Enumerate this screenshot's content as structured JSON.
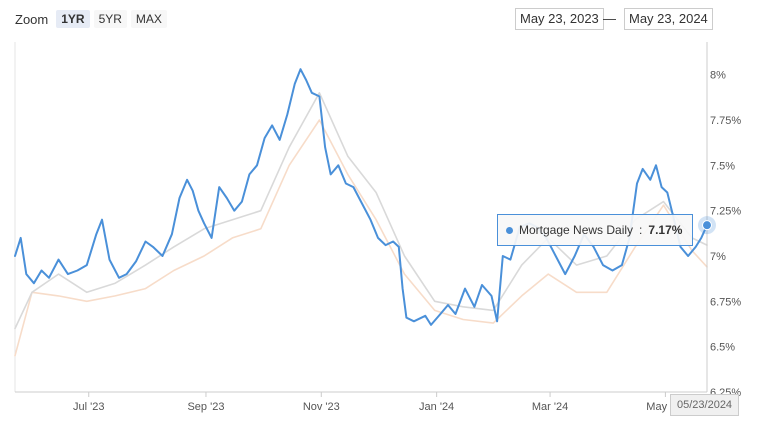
{
  "zoom": {
    "label": "Zoom",
    "buttons": [
      {
        "label": "1YR",
        "active": true
      },
      {
        "label": "5YR",
        "active": false
      },
      {
        "label": "MAX",
        "active": false
      }
    ]
  },
  "range": {
    "from": "May 23, 2023",
    "separator": "—",
    "to": "May 23, 2024"
  },
  "tooltip": {
    "series": "Mortgage News Daily",
    "value": "7.17%"
  },
  "crosshair_date": "05/23/2024",
  "colors": {
    "primary_line": "#4a90d9",
    "gray_line": "#d9d9d9",
    "orange_line": "#f7dcc9"
  },
  "chart_data": {
    "type": "line",
    "x_axis": {
      "ticks": [
        {
          "label": "Jul '23",
          "date": "2023-07-01"
        },
        {
          "label": "Sep '23",
          "date": "2023-09-01"
        },
        {
          "label": "Nov '23",
          "date": "2023-11-01"
        },
        {
          "label": "Jan '24",
          "date": "2024-01-01"
        },
        {
          "label": "Mar '24",
          "date": "2024-03-01"
        },
        {
          "label": "May '24",
          "date": "2024-05-01"
        }
      ],
      "range": [
        "2023-05-23",
        "2024-05-23"
      ]
    },
    "y_axis": {
      "ticks": [
        {
          "label": "6.25%",
          "value": 6.25
        },
        {
          "label": "6.5%",
          "value": 6.5
        },
        {
          "label": "6.75%",
          "value": 6.75
        },
        {
          "label": "7%",
          "value": 7.0
        },
        {
          "label": "7.25%",
          "value": 7.25
        },
        {
          "label": "7.5%",
          "value": 7.5
        },
        {
          "label": "7.75%",
          "value": 7.75
        },
        {
          "label": "8%",
          "value": 8.0
        }
      ],
      "range": [
        6.25,
        8.18
      ],
      "gridlines": false
    },
    "series": [
      {
        "name": "",
        "color": "#f7dcc9",
        "points": [
          [
            "2023-05-23",
            6.45
          ],
          [
            "2023-06-01",
            6.8
          ],
          [
            "2023-06-15",
            6.78
          ],
          [
            "2023-06-30",
            6.75
          ],
          [
            "2023-07-15",
            6.78
          ],
          [
            "2023-07-31",
            6.82
          ],
          [
            "2023-08-15",
            6.92
          ],
          [
            "2023-08-31",
            7.0
          ],
          [
            "2023-09-15",
            7.1
          ],
          [
            "2023-09-30",
            7.15
          ],
          [
            "2023-10-15",
            7.5
          ],
          [
            "2023-10-31",
            7.75
          ],
          [
            "2023-11-15",
            7.45
          ],
          [
            "2023-11-30",
            7.2
          ],
          [
            "2023-12-15",
            6.9
          ],
          [
            "2023-12-31",
            6.7
          ],
          [
            "2024-01-15",
            6.65
          ],
          [
            "2024-01-31",
            6.63
          ],
          [
            "2024-02-15",
            6.78
          ],
          [
            "2024-02-29",
            6.9
          ],
          [
            "2024-03-15",
            6.8
          ],
          [
            "2024-03-31",
            6.8
          ],
          [
            "2024-04-15",
            7.05
          ],
          [
            "2024-04-30",
            7.28
          ],
          [
            "2024-05-15",
            7.03
          ],
          [
            "2024-05-23",
            6.94
          ]
        ]
      },
      {
        "name": "",
        "color": "#d9d9d9",
        "points": [
          [
            "2023-05-23",
            6.6
          ],
          [
            "2023-06-01",
            6.8
          ],
          [
            "2023-06-15",
            6.9
          ],
          [
            "2023-06-30",
            6.8
          ],
          [
            "2023-07-15",
            6.85
          ],
          [
            "2023-07-31",
            6.95
          ],
          [
            "2023-08-15",
            7.05
          ],
          [
            "2023-08-31",
            7.15
          ],
          [
            "2023-09-15",
            7.2
          ],
          [
            "2023-09-30",
            7.25
          ],
          [
            "2023-10-15",
            7.6
          ],
          [
            "2023-10-31",
            7.9
          ],
          [
            "2023-11-15",
            7.55
          ],
          [
            "2023-11-30",
            7.35
          ],
          [
            "2023-12-15",
            7.0
          ],
          [
            "2023-12-31",
            6.75
          ],
          [
            "2024-01-15",
            6.72
          ],
          [
            "2024-01-31",
            6.7
          ],
          [
            "2024-02-15",
            6.95
          ],
          [
            "2024-02-29",
            7.1
          ],
          [
            "2024-03-15",
            6.95
          ],
          [
            "2024-03-31",
            7.0
          ],
          [
            "2024-04-15",
            7.2
          ],
          [
            "2024-04-30",
            7.3
          ],
          [
            "2024-05-15",
            7.1
          ],
          [
            "2024-05-23",
            7.06
          ]
        ]
      },
      {
        "name": "Mortgage News Daily",
        "color": "#4a90d9",
        "points": [
          [
            "2023-05-23",
            7.0
          ],
          [
            "2023-05-26",
            7.1
          ],
          [
            "2023-05-29",
            6.9
          ],
          [
            "2023-06-02",
            6.85
          ],
          [
            "2023-06-06",
            6.92
          ],
          [
            "2023-06-10",
            6.88
          ],
          [
            "2023-06-15",
            6.98
          ],
          [
            "2023-06-20",
            6.9
          ],
          [
            "2023-06-25",
            6.92
          ],
          [
            "2023-06-30",
            6.95
          ],
          [
            "2023-07-05",
            7.12
          ],
          [
            "2023-07-08",
            7.2
          ],
          [
            "2023-07-12",
            6.98
          ],
          [
            "2023-07-17",
            6.88
          ],
          [
            "2023-07-21",
            6.9
          ],
          [
            "2023-07-26",
            6.97
          ],
          [
            "2023-07-31",
            7.08
          ],
          [
            "2023-08-04",
            7.05
          ],
          [
            "2023-08-09",
            7.0
          ],
          [
            "2023-08-14",
            7.12
          ],
          [
            "2023-08-18",
            7.32
          ],
          [
            "2023-08-22",
            7.42
          ],
          [
            "2023-08-25",
            7.36
          ],
          [
            "2023-08-28",
            7.25
          ],
          [
            "2023-08-31",
            7.18
          ],
          [
            "2023-09-04",
            7.1
          ],
          [
            "2023-09-08",
            7.38
          ],
          [
            "2023-09-12",
            7.32
          ],
          [
            "2023-09-16",
            7.25
          ],
          [
            "2023-09-20",
            7.3
          ],
          [
            "2023-09-24",
            7.45
          ],
          [
            "2023-09-28",
            7.5
          ],
          [
            "2023-10-02",
            7.65
          ],
          [
            "2023-10-06",
            7.72
          ],
          [
            "2023-10-10",
            7.64
          ],
          [
            "2023-10-14",
            7.78
          ],
          [
            "2023-10-18",
            7.95
          ],
          [
            "2023-10-21",
            8.03
          ],
          [
            "2023-10-24",
            7.97
          ],
          [
            "2023-10-27",
            7.9
          ],
          [
            "2023-10-31",
            7.88
          ],
          [
            "2023-11-03",
            7.6
          ],
          [
            "2023-11-06",
            7.45
          ],
          [
            "2023-11-10",
            7.5
          ],
          [
            "2023-11-14",
            7.4
          ],
          [
            "2023-11-18",
            7.38
          ],
          [
            "2023-11-22",
            7.3
          ],
          [
            "2023-11-27",
            7.2
          ],
          [
            "2023-12-01",
            7.1
          ],
          [
            "2023-12-05",
            7.06
          ],
          [
            "2023-12-09",
            7.08
          ],
          [
            "2023-12-12",
            7.05
          ],
          [
            "2023-12-14",
            6.82
          ],
          [
            "2023-12-16",
            6.66
          ],
          [
            "2023-12-20",
            6.64
          ],
          [
            "2023-12-26",
            6.67
          ],
          [
            "2023-12-29",
            6.62
          ],
          [
            "2024-01-03",
            6.68
          ],
          [
            "2024-01-07",
            6.73
          ],
          [
            "2024-01-11",
            6.68
          ],
          [
            "2024-01-16",
            6.82
          ],
          [
            "2024-01-21",
            6.72
          ],
          [
            "2024-01-25",
            6.84
          ],
          [
            "2024-01-30",
            6.78
          ],
          [
            "2024-02-02",
            6.64
          ],
          [
            "2024-02-05",
            7.0
          ],
          [
            "2024-02-09",
            6.98
          ],
          [
            "2024-02-14",
            7.16
          ],
          [
            "2024-02-19",
            7.18
          ],
          [
            "2024-02-23",
            7.16
          ],
          [
            "2024-02-28",
            7.1
          ],
          [
            "2024-03-04",
            7.0
          ],
          [
            "2024-03-09",
            6.9
          ],
          [
            "2024-03-14",
            7.0
          ],
          [
            "2024-03-19",
            7.12
          ],
          [
            "2024-03-24",
            7.05
          ],
          [
            "2024-03-29",
            6.95
          ],
          [
            "2024-04-03",
            6.92
          ],
          [
            "2024-04-08",
            6.95
          ],
          [
            "2024-04-12",
            7.1
          ],
          [
            "2024-04-16",
            7.4
          ],
          [
            "2024-04-19",
            7.48
          ],
          [
            "2024-04-23",
            7.42
          ],
          [
            "2024-04-26",
            7.5
          ],
          [
            "2024-04-29",
            7.38
          ],
          [
            "2024-05-02",
            7.35
          ],
          [
            "2024-05-06",
            7.18
          ],
          [
            "2024-05-09",
            7.05
          ],
          [
            "2024-05-13",
            7.0
          ],
          [
            "2024-05-17",
            7.05
          ],
          [
            "2024-05-20",
            7.1
          ],
          [
            "2024-05-23",
            7.17
          ]
        ]
      }
    ]
  }
}
